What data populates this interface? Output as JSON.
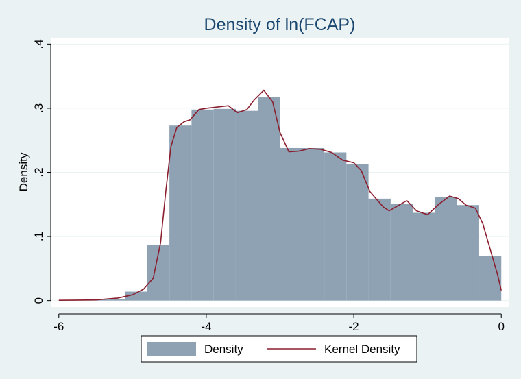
{
  "chart_data": {
    "type": "bar",
    "title": "Density of ln(FCAP)",
    "ylabel": "Density",
    "xlabel": "",
    "xlim": [
      -6.1,
      0.1
    ],
    "ylim": [
      -0.01,
      0.41
    ],
    "x_ticks": [
      -6,
      -4,
      -2,
      0
    ],
    "x_tick_labels": [
      "-6",
      "-4",
      "-2",
      "0"
    ],
    "y_ticks": [
      0,
      0.1,
      0.2,
      0.3,
      0.4
    ],
    "y_tick_labels": [
      "0",
      ".1",
      ".2",
      ".3",
      ".4"
    ],
    "grid": "horizontal",
    "legend_position": "bottom",
    "colors": {
      "bars": "#8ea2b4",
      "kernel": "#8b1e2e",
      "frame": "#ffffff",
      "background": "#eaf2f3"
    },
    "series": [
      {
        "name": "Density",
        "type": "bar",
        "bin_width": 0.3,
        "bins": [
          {
            "x0": -6.0,
            "value": 0.001
          },
          {
            "x0": -5.7,
            "value": 0.001
          },
          {
            "x0": -5.4,
            "value": 0.002
          },
          {
            "x0": -5.1,
            "value": 0.014
          },
          {
            "x0": -4.8,
            "value": 0.087
          },
          {
            "x0": -4.5,
            "value": 0.273
          },
          {
            "x0": -4.2,
            "value": 0.298
          },
          {
            "x0": -3.9,
            "value": 0.299
          },
          {
            "x0": -3.6,
            "value": 0.296
          },
          {
            "x0": -3.3,
            "value": 0.318
          },
          {
            "x0": -3.0,
            "value": 0.238
          },
          {
            "x0": -2.7,
            "value": 0.238
          },
          {
            "x0": -2.4,
            "value": 0.231
          },
          {
            "x0": -2.1,
            "value": 0.213
          },
          {
            "x0": -1.8,
            "value": 0.159
          },
          {
            "x0": -1.5,
            "value": 0.151
          },
          {
            "x0": -1.2,
            "value": 0.137
          },
          {
            "x0": -0.9,
            "value": 0.161
          },
          {
            "x0": -0.6,
            "value": 0.149
          },
          {
            "x0": -0.3,
            "value": 0.07
          }
        ]
      },
      {
        "name": "Kernel Density",
        "type": "line",
        "points": [
          [
            -6.0,
            0.0005
          ],
          [
            -5.5,
            0.001
          ],
          [
            -5.2,
            0.004
          ],
          [
            -5.0,
            0.009
          ],
          [
            -4.85,
            0.018
          ],
          [
            -4.72,
            0.035
          ],
          [
            -4.62,
            0.09
          ],
          [
            -4.55,
            0.17
          ],
          [
            -4.48,
            0.24
          ],
          [
            -4.4,
            0.27
          ],
          [
            -4.3,
            0.279
          ],
          [
            -4.22,
            0.282
          ],
          [
            -4.1,
            0.298
          ],
          [
            -4.0,
            0.3
          ],
          [
            -3.85,
            0.302
          ],
          [
            -3.7,
            0.304
          ],
          [
            -3.58,
            0.293
          ],
          [
            -3.45,
            0.298
          ],
          [
            -3.35,
            0.313
          ],
          [
            -3.22,
            0.328
          ],
          [
            -3.1,
            0.31
          ],
          [
            -3.0,
            0.262
          ],
          [
            -2.88,
            0.232
          ],
          [
            -2.75,
            0.233
          ],
          [
            -2.6,
            0.237
          ],
          [
            -2.45,
            0.236
          ],
          [
            -2.3,
            0.231
          ],
          [
            -2.15,
            0.219
          ],
          [
            -2.0,
            0.215
          ],
          [
            -1.9,
            0.203
          ],
          [
            -1.78,
            0.17
          ],
          [
            -1.6,
            0.146
          ],
          [
            -1.52,
            0.14
          ],
          [
            -1.4,
            0.148
          ],
          [
            -1.28,
            0.156
          ],
          [
            -1.15,
            0.14
          ],
          [
            -1.0,
            0.134
          ],
          [
            -0.85,
            0.15
          ],
          [
            -0.7,
            0.163
          ],
          [
            -0.58,
            0.159
          ],
          [
            -0.48,
            0.149
          ],
          [
            -0.35,
            0.144
          ],
          [
            -0.25,
            0.12
          ],
          [
            -0.15,
            0.08
          ],
          [
            -0.05,
            0.04
          ],
          [
            0.0,
            0.016
          ]
        ]
      }
    ]
  }
}
